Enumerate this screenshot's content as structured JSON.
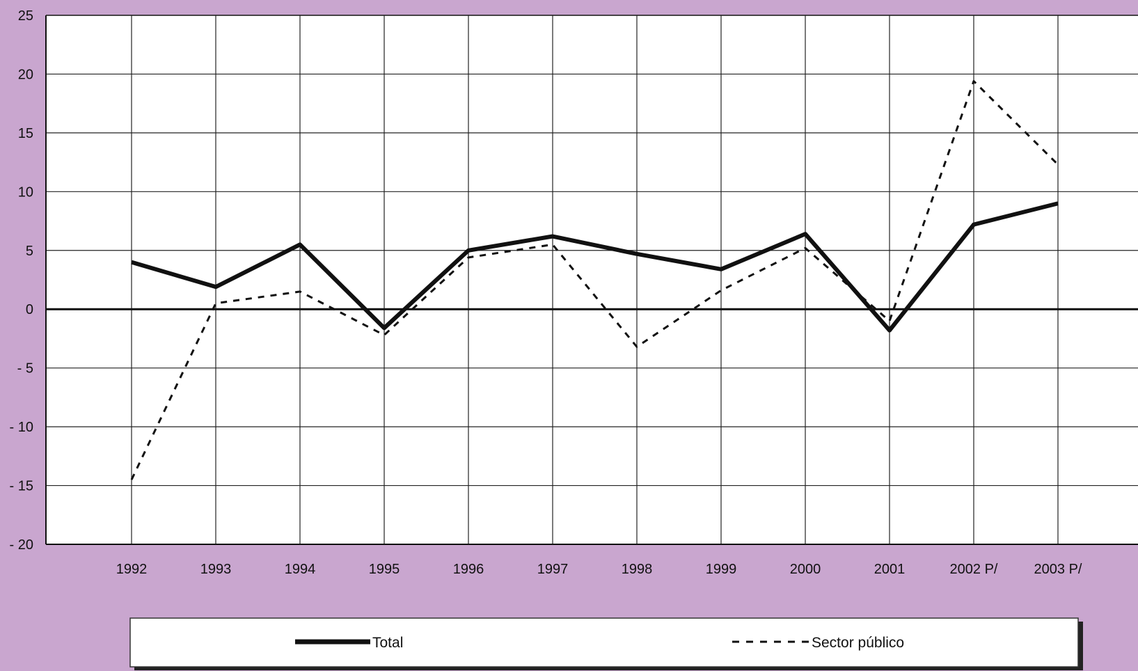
{
  "chart_data": {
    "type": "line",
    "categories": [
      "1992",
      "1993",
      "1994",
      "1995",
      "1996",
      "1997",
      "1998",
      "1999",
      "2000",
      "2001",
      "2002 P/",
      "2003 P/"
    ],
    "series": [
      {
        "name": "Total",
        "values": [
          4.0,
          1.9,
          5.5,
          -1.6,
          5.0,
          6.2,
          4.7,
          3.4,
          6.4,
          -1.8,
          7.2,
          9.0
        ],
        "style": "solid",
        "color": "#111111"
      },
      {
        "name": "Sector público",
        "values": [
          -14.5,
          0.5,
          1.5,
          -2.2,
          4.4,
          5.5,
          -3.2,
          1.6,
          5.2,
          -1.0,
          19.4,
          12.3
        ],
        "style": "dashed",
        "color": "#111111"
      }
    ],
    "yticks": [
      "25",
      "20",
      "15",
      "10",
      "5",
      "0",
      "- 5",
      "- 10",
      "- 15",
      "- 20"
    ],
    "ylim": [
      -20,
      25
    ],
    "grid": true,
    "legend_position": "bottom",
    "colors": {
      "background": "#c9a6cf",
      "plot": "#ffffff",
      "line": "#111111"
    }
  }
}
